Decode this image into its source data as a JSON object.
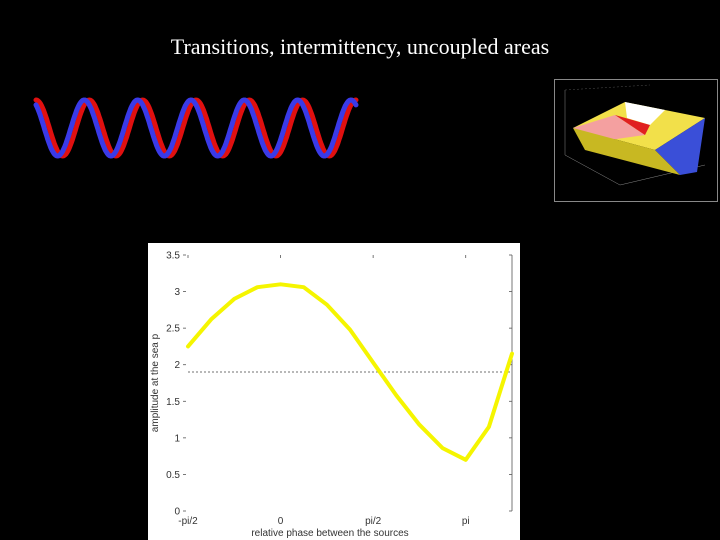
{
  "slide": {
    "title": "Transitions, intermittency, uncoupled areas"
  },
  "colors": {
    "background": "#000000",
    "wave_red": "#e01010",
    "wave_blue": "#3a3ae8",
    "curve": "#f5f500",
    "panel": "#ffffff"
  },
  "waves": {
    "series": [
      {
        "color_key": "wave_red",
        "cycles": 6,
        "phase": 0
      },
      {
        "color_key": "wave_blue",
        "cycles": 6,
        "phase": 0.6
      }
    ]
  },
  "thumbnail": {
    "description_icon": "3d-surface-plot-icon"
  },
  "chart_data": {
    "type": "line",
    "title": "",
    "xlabel": "relative phase between the sources",
    "ylabel": "amplitude at the sea p",
    "xlim": [
      -1.5708,
      3.927
    ],
    "ylim": [
      0,
      3.5
    ],
    "xticks": [
      {
        "value": -1.5708,
        "label": "-pi/2"
      },
      {
        "value": 0,
        "label": "0"
      },
      {
        "value": 1.5708,
        "label": "pi/2"
      },
      {
        "value": 3.1416,
        "label": "pi"
      }
    ],
    "yticks": [
      {
        "value": 0,
        "label": "0"
      },
      {
        "value": 0.5,
        "label": "0.5"
      },
      {
        "value": 1,
        "label": "1"
      },
      {
        "value": 1.5,
        "label": "1.5"
      },
      {
        "value": 2,
        "label": "2"
      },
      {
        "value": 2.5,
        "label": "2.5"
      },
      {
        "value": 3,
        "label": "3"
      },
      {
        "value": 3.5,
        "label": "3.5"
      }
    ],
    "reference_line": {
      "y": 1.9,
      "style": "dotted"
    },
    "series": [
      {
        "color_key": "curve",
        "x": [
          -1.5708,
          -1.1781,
          -0.7854,
          -0.3927,
          0,
          0.3927,
          0.7854,
          1.1781,
          1.5708,
          1.9635,
          2.3562,
          2.7489,
          3.1416,
          3.5343,
          3.927
        ],
        "y": [
          2.25,
          2.62,
          2.9,
          3.06,
          3.1,
          3.06,
          2.82,
          2.48,
          2.03,
          1.58,
          1.18,
          0.86,
          0.7,
          1.15,
          2.15
        ]
      }
    ]
  }
}
